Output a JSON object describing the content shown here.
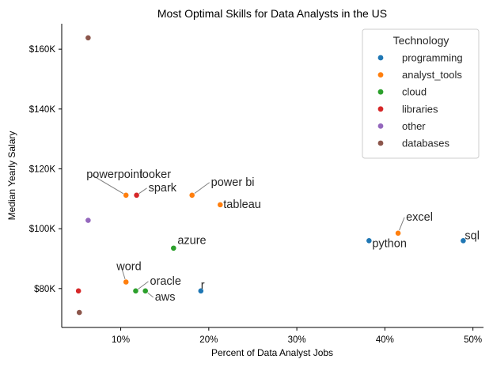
{
  "chart_data": {
    "type": "scatter",
    "title": "Most Optimal Skills for Data Analysts in the US",
    "xlabel": "Percent of Data Analyst Jobs",
    "ylabel": "Median Yearly Salary",
    "xlim": [
      3.3,
      51.2
    ],
    "ylim": [
      67000,
      168500
    ],
    "x_ticks": [
      10,
      20,
      30,
      40,
      50
    ],
    "x_tick_labels": [
      "10%",
      "20%",
      "30%",
      "40%",
      "50%"
    ],
    "y_ticks": [
      80000,
      100000,
      120000,
      140000,
      160000
    ],
    "y_tick_labels": [
      "$80K",
      "$100K",
      "$120K",
      "$140K",
      "$160K"
    ],
    "grid": false,
    "legend_position": "top-right",
    "legend_title": "Technology",
    "categories": [
      {
        "name": "programming",
        "color": "#1f77b4"
      },
      {
        "name": "analyst_tools",
        "color": "#ff7f0e"
      },
      {
        "name": "cloud",
        "color": "#2ca02c"
      },
      {
        "name": "libraries",
        "color": "#d62728"
      },
      {
        "name": "other",
        "color": "#9467bd"
      },
      {
        "name": "databases",
        "color": "#8c564b"
      }
    ],
    "points": [
      {
        "label": "sql",
        "x": 48.9,
        "y": 96000,
        "category": "programming"
      },
      {
        "label": "python",
        "x": 38.2,
        "y": 96000,
        "category": "programming"
      },
      {
        "label": "r",
        "x": 19.1,
        "y": 79200,
        "category": "programming"
      },
      {
        "label": "excel",
        "x": 41.5,
        "y": 98500,
        "category": "analyst_tools"
      },
      {
        "label": "tableau",
        "x": 21.3,
        "y": 108000,
        "category": "analyst_tools"
      },
      {
        "label": "power bi",
        "x": 18.1,
        "y": 111200,
        "category": "analyst_tools"
      },
      {
        "label": "powerpoint",
        "x": 10.6,
        "y": 111200,
        "category": "analyst_tools"
      },
      {
        "label": "word",
        "x": 10.6,
        "y": 82200,
        "category": "analyst_tools"
      },
      {
        "label": "azure",
        "x": 16.0,
        "y": 93500,
        "category": "cloud"
      },
      {
        "label": "oracle",
        "x": 11.7,
        "y": 79200,
        "category": "cloud"
      },
      {
        "label": "aws",
        "x": 12.8,
        "y": 79200,
        "category": "cloud"
      },
      {
        "label": "looker",
        "x": 11.8,
        "y": 111200,
        "category": "analyst_tools"
      },
      {
        "label": "spark",
        "x": 11.8,
        "y": 111200,
        "category": "libraries"
      },
      {
        "label": "",
        "x": 5.2,
        "y": 79200,
        "category": "libraries"
      },
      {
        "label": "",
        "x": 6.3,
        "y": 102800,
        "category": "other"
      },
      {
        "label": "",
        "x": 6.3,
        "y": 163800,
        "category": "databases"
      },
      {
        "label": "",
        "x": 5.3,
        "y": 72000,
        "category": "databases"
      }
    ]
  }
}
